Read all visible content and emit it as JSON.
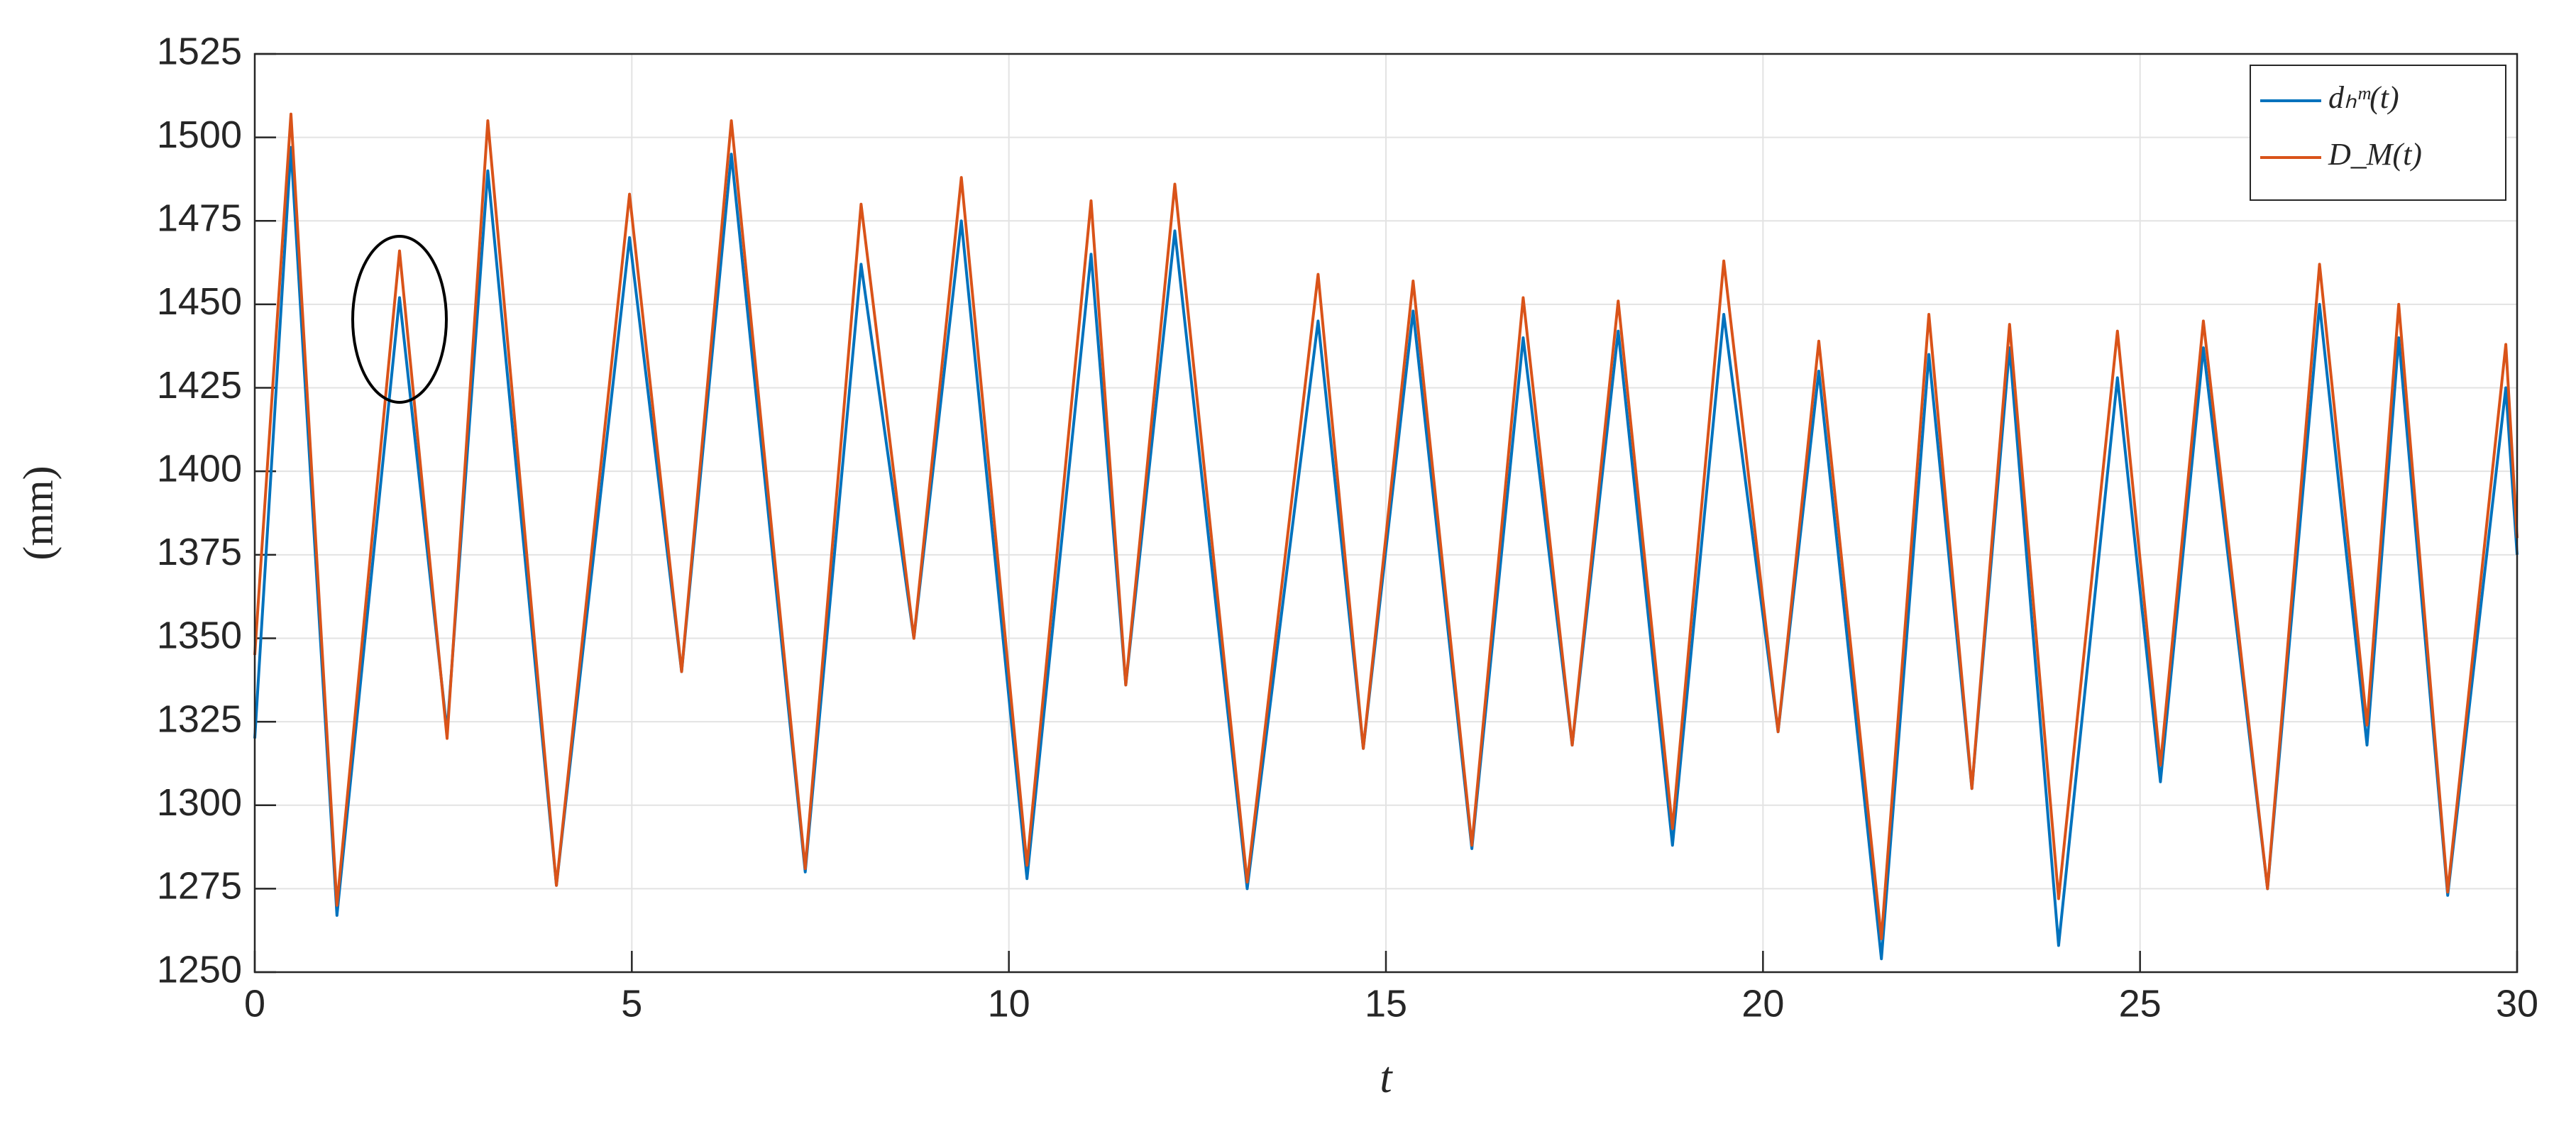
{
  "chart_data": {
    "type": "line",
    "x_label": "t",
    "y_label": "(mm)",
    "x": [
      0,
      0.48,
      1.09,
      1.92,
      2.55,
      3.09,
      4.0,
      4.97,
      5.66,
      6.32,
      7.3,
      8.04,
      8.74,
      9.37,
      10.24,
      11.09,
      11.55,
      12.2,
      13.16,
      14.1,
      14.7,
      15.36,
      16.14,
      16.82,
      17.47,
      18.08,
      18.8,
      19.48,
      20.2,
      20.74,
      21.57,
      22.2,
      22.77,
      23.27,
      23.92,
      24.7,
      25.27,
      25.84,
      26.69,
      27.38,
      28.01,
      28.43,
      29.08,
      29.85,
      30
    ],
    "series": [
      {
        "name": "dₕᵐ(t)",
        "color": "#0072bd",
        "values": [
          1320,
          1497,
          1267,
          1452,
          1322,
          1490,
          1276,
          1470,
          1340,
          1495,
          1280,
          1462,
          1350,
          1475,
          1278,
          1465,
          1336,
          1472,
          1275,
          1445,
          1317,
          1448,
          1287,
          1440,
          1318,
          1442,
          1288,
          1447,
          1322,
          1430,
          1254,
          1435,
          1305,
          1437,
          1258,
          1428,
          1307,
          1437,
          1275,
          1450,
          1318,
          1440,
          1273,
          1425,
          1375
        ]
      },
      {
        "name": "D_M(t)",
        "color": "#d95319",
        "values": [
          1345,
          1507,
          1270,
          1466,
          1320,
          1505,
          1276,
          1483,
          1340,
          1505,
          1281,
          1480,
          1350,
          1488,
          1282,
          1481,
          1336,
          1486,
          1277,
          1459,
          1317,
          1457,
          1288,
          1452,
          1318,
          1451,
          1293,
          1463,
          1322,
          1439,
          1260,
          1447,
          1305,
          1444,
          1272,
          1442,
          1312,
          1445,
          1275,
          1462,
          1324,
          1450,
          1274,
          1438,
          1380
        ]
      }
    ],
    "xlim": [
      0,
      30
    ],
    "xticks": [
      0,
      5,
      10,
      15,
      20,
      25,
      30
    ],
    "ylim": [
      1250,
      1525
    ],
    "yticks": [
      1250,
      1275,
      1300,
      1325,
      1350,
      1375,
      1400,
      1425,
      1450,
      1475,
      1500,
      1525
    ],
    "grid": true,
    "legend": "upper right"
  }
}
